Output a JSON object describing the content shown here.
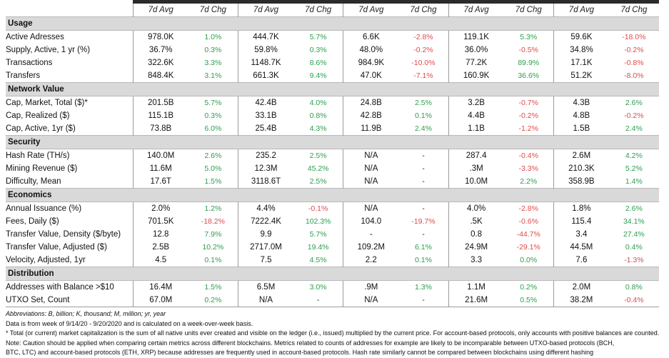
{
  "columns": [
    "7d Avg",
    "7d Chg",
    "7d Avg",
    "7d Chg",
    "7d Avg",
    "7d Chg",
    "7d Avg",
    "7d Chg",
    "7d Avg",
    "7d Chg"
  ],
  "sections": [
    {
      "title": "Usage",
      "rows": [
        {
          "label": "Active Adresses",
          "cells": [
            "978.0K",
            "1.0%",
            "444.7K",
            "5.7%",
            "6.6K",
            "-2.8%",
            "119.1K",
            "5.3%",
            "59.6K",
            "-18.0%"
          ]
        },
        {
          "label": "Supply, Active, 1 yr (%)",
          "cells": [
            "36.7%",
            "0.3%",
            "59.8%",
            "0.3%",
            "48.0%",
            "-0.2%",
            "36.0%",
            "-0.5%",
            "34.8%",
            "-0.2%"
          ]
        },
        {
          "label": "Transactions",
          "cells": [
            "322.6K",
            "3.3%",
            "1148.7K",
            "8.6%",
            "984.9K",
            "-10.0%",
            "77.2K",
            "89.9%",
            "17.1K",
            "-0.8%"
          ]
        },
        {
          "label": "Transfers",
          "cells": [
            "848.4K",
            "3.1%",
            "661.3K",
            "9.4%",
            "47.0K",
            "-7.1%",
            "160.9K",
            "36.6%",
            "51.2K",
            "-8.0%"
          ]
        }
      ]
    },
    {
      "title": "Network Value",
      "rows": [
        {
          "label": "Cap, Market, Total ($)*",
          "cells": [
            "201.5B",
            "5.7%",
            "42.4B",
            "4.0%",
            "24.8B",
            "2.5%",
            "3.2B",
            "-0.7%",
            "4.3B",
            "2.6%"
          ]
        },
        {
          "label": "Cap, Realized ($)",
          "cells": [
            "115.1B",
            "0.3%",
            "33.1B",
            "0.8%",
            "42.8B",
            "0.1%",
            "4.4B",
            "-0.2%",
            "4.8B",
            "-0.2%"
          ]
        },
        {
          "label": "Cap, Active, 1yr ($)",
          "cells": [
            "73.8B",
            "6.0%",
            "25.4B",
            "4.3%",
            "11.9B",
            "2.4%",
            "1.1B",
            "-1.2%",
            "1.5B",
            "2.4%"
          ]
        }
      ]
    },
    {
      "title": "Security",
      "rows": [
        {
          "label": "Hash Rate (TH/s)",
          "cells": [
            "140.0M",
            "2.6%",
            "235.2",
            "2.5%",
            "N/A",
            "-",
            "287.4",
            "-0.4%",
            "2.6M",
            "4.2%"
          ]
        },
        {
          "label": "Mining Revenue ($)",
          "cells": [
            "11.6M",
            "5.0%",
            "12.3M",
            "45.2%",
            "N/A",
            "-",
            ".3M",
            "-3.3%",
            "210.3K",
            "5.2%"
          ]
        },
        {
          "label": "Difficulty, Mean",
          "cells": [
            "17.6T",
            "1.5%",
            "3118.6T",
            "2.5%",
            "N/A",
            "-",
            "10.0M",
            "2.2%",
            "358.9B",
            "1.4%"
          ]
        }
      ]
    },
    {
      "title": "Economics",
      "rows": [
        {
          "label": "Annual Issuance (%)",
          "cells": [
            "2.0%",
            "1.2%",
            "4.4%",
            "-0.1%",
            "N/A",
            "-",
            "4.0%",
            "-2.8%",
            "1.8%",
            "2.6%"
          ]
        },
        {
          "label": "Fees, Daily ($)",
          "cells": [
            "701.5K",
            "-18.2%",
            "7222.4K",
            "102.3%",
            "104.0",
            "-19.7%",
            ".5K",
            "-0.6%",
            "115.4",
            "34.1%"
          ]
        },
        {
          "label": "Transfer Value, Density ($/byte)",
          "cells": [
            "12.8",
            "7.9%",
            "9.9",
            "5.7%",
            "-",
            "-",
            "0.8",
            "-44.7%",
            "3.4",
            "27.4%"
          ]
        },
        {
          "label": "Transfer Value, Adjusted ($)",
          "cells": [
            "2.5B",
            "10.2%",
            "2717.0M",
            "19.4%",
            "109.2M",
            "6.1%",
            "24.9M",
            "-29.1%",
            "44.5M",
            "0.4%"
          ]
        },
        {
          "label": "Velocity, Adjusted, 1yr",
          "cells": [
            "4.5",
            "0.1%",
            "7.5",
            "4.5%",
            "2.2",
            "0.1%",
            "3.3",
            "0.0%",
            "7.6",
            "-1.3%"
          ]
        }
      ]
    },
    {
      "title": "Distribution",
      "rows": [
        {
          "label": "Addresses with Balance >$10",
          "cells": [
            "16.4M",
            "1.5%",
            "6.5M",
            "3.0%",
            ".9M",
            "1.3%",
            "1.1M",
            "0.2%",
            "2.0M",
            "0.8%"
          ]
        },
        {
          "label": "UTXO Set, Count",
          "cells": [
            "67.0M",
            "0.2%",
            "N/A",
            "-",
            "N/A",
            "-",
            "21.6M",
            "0.5%",
            "38.2M",
            "-0.4%"
          ]
        }
      ]
    }
  ],
  "colors": {
    "positive": "#2e9e4f",
    "negative": "#e04b4b",
    "section_bg": "#d9d9d9",
    "header_rule": "#2b2b2b"
  },
  "notes": {
    "abbreviations": "Abbreviations: B, billion; K, thousand; M, million; yr, year",
    "data_range": "Data is from week of 9/14/20 - 9/20/2020 and is calculated on a week-over-week basis.",
    "cap_footnote": "* Total (or current) market capitalization is the sum of all native units ever created and visible on the ledger (i.e., issued) multiplied by the current price. For account-based protocols, only accounts with positive balances are counted.",
    "caution_line1": "Note: Caution should be applied when comparing certain metrics across different blockchains. Metrics related to counts of addresses for example are likely to be incomparable between UTXO-based protocols (BCH,",
    "caution_line2": "BTC, LTC) and account-based protocols (ETH, XRP) because addresses are frequently used in account-based protocols. Hash rate similarly cannot be compared between blockchains using different hashing"
  }
}
